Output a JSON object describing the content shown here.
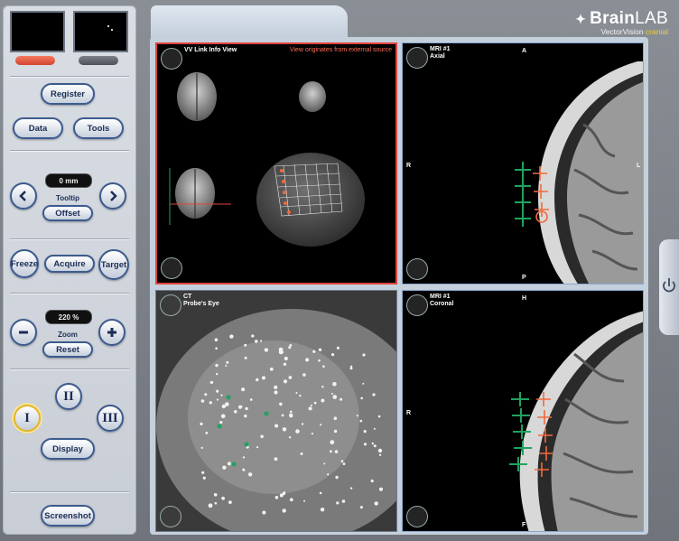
{
  "panel": {
    "register_label": "Register",
    "data_label": "Data",
    "tools_label": "Tools",
    "offset_readout": "0 mm",
    "tooltip_label": "Tooltip",
    "offset_label": "Offset",
    "freeze_label": "Freeze",
    "acquire_label": "Acquire",
    "target_label": "Target",
    "zoom_readout": "220 %",
    "zoom_label": "Zoom",
    "reset_label": "Reset",
    "layout_1_label": "I",
    "layout_2_label": "II",
    "layout_3_label": "III",
    "display_label": "Display",
    "screenshot_label": "Screenshot"
  },
  "brand": {
    "name_bold": "Brain",
    "name_light": "LAB",
    "product": "VectorVision",
    "product_accent": "cranial"
  },
  "views": {
    "v1": {
      "title": "VV Link Info View",
      "note": "View originates from external source"
    },
    "v2": {
      "title": "MRI #1",
      "subtitle": "Axial",
      "top": "A",
      "left": "R",
      "right": "L",
      "bottom": "P"
    },
    "v3": {
      "title": "CT",
      "subtitle": "Probe's Eye"
    },
    "v4": {
      "title": "MRI #1",
      "subtitle": "Coronal",
      "top": "H",
      "left": "R",
      "bottom": "F"
    }
  },
  "colors": {
    "active_view_border": "#e1433d",
    "button_border": "#3c5b8e",
    "marker_green": "#1fa35e",
    "marker_orange": "#ef6a3c",
    "brand_accent": "#f3cc3c"
  },
  "icons": {
    "view_mode": "eye-icon",
    "zoom": "magnifier-icon",
    "power": "power-icon",
    "prev": "chevron-left-icon",
    "next": "chevron-right-icon",
    "zoom_out": "minus-icon",
    "zoom_in": "plus-icon"
  }
}
